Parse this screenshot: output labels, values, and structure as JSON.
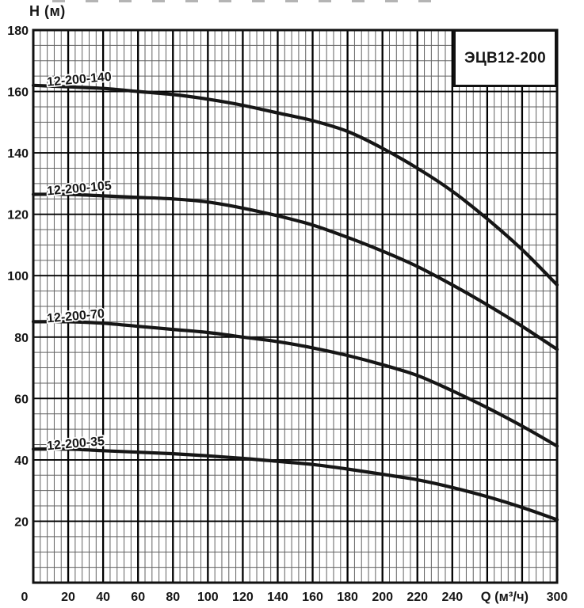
{
  "chart_data": {
    "type": "line",
    "title": "ЭЦВ12-200",
    "xlabel": "Q (м³/ч)",
    "ylabel": "H (м)",
    "x": [
      0,
      20,
      40,
      60,
      80,
      100,
      120,
      140,
      160,
      180,
      200,
      220,
      240,
      260,
      280,
      300
    ],
    "xlim": [
      0,
      300
    ],
    "ylim": [
      0,
      180
    ],
    "x_tick_step": 20,
    "y_tick_step": 20,
    "x_minor_step": 4,
    "y_minor_step": 5,
    "x_tick_labels": [
      "0",
      "20",
      "40",
      "60",
      "80",
      "100",
      "120",
      "140",
      "160",
      "180",
      "200",
      "220",
      "240",
      "300"
    ],
    "y_tick_labels": [
      "20",
      "40",
      "60",
      "80",
      "100",
      "120",
      "140",
      "160",
      "180"
    ],
    "x_ticks_without_labels": [
      260,
      280
    ],
    "grid": "fine-graph-paper",
    "legend_position": "labels-on-curves",
    "series": [
      {
        "name": "12-200-140",
        "values": [
          162,
          161.5,
          161,
          160,
          159,
          157.5,
          155.5,
          153,
          150.5,
          147,
          141.5,
          135,
          127.5,
          118.5,
          108.5,
          97
        ]
      },
      {
        "name": "12-200-105",
        "values": [
          126.5,
          126.5,
          126,
          125.5,
          125,
          124,
          122,
          119.5,
          116.5,
          112.5,
          108,
          103,
          97,
          90.5,
          83.5,
          76
        ]
      },
      {
        "name": "12-200-70",
        "values": [
          85,
          85,
          84.5,
          83.5,
          82.5,
          81.5,
          80,
          78.5,
          76.5,
          74,
          71,
          67.5,
          62.5,
          57,
          51,
          44.5
        ]
      },
      {
        "name": "12-200-35",
        "values": [
          43.5,
          43.5,
          43,
          42.5,
          42,
          41.3,
          40.5,
          39.5,
          38.5,
          37,
          35.3,
          33.5,
          31,
          28,
          24.5,
          20.5
        ]
      }
    ],
    "colors": {
      "curve": "#161616",
      "grid_major": "#000000",
      "grid_minor": "#474747",
      "border": "#111111",
      "background": "#ffffff",
      "text": "#161616"
    }
  }
}
